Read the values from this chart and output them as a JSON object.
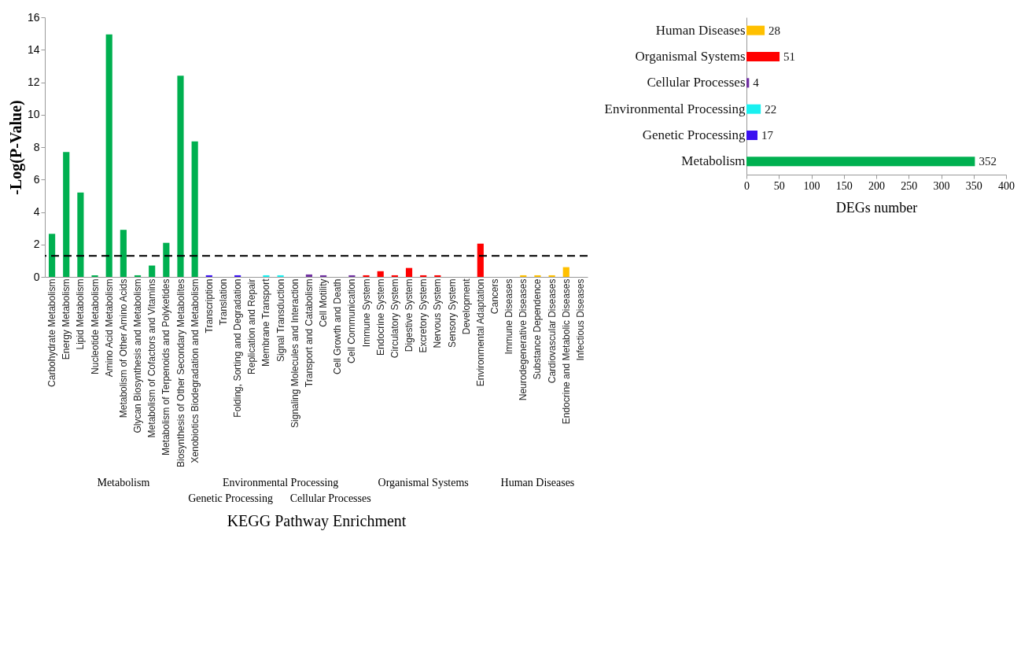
{
  "chart_data": [
    {
      "type": "bar",
      "ylabel": "-Log(P-Value)",
      "xlabel": "KEGG  Pathway Enrichment",
      "categories": [
        "Carbohydrate Metabolism",
        "Energy Metabolism",
        "Lipid Metabolism",
        "Nucleotide Metabolism",
        "Amino Acid Metabolism",
        "Metabolism of Other Amino Acids",
        "Glycan Biosynthesis and Metabolism",
        "Metabolism of Cofactors and Vitamins",
        "Metabolism of Terpenoids and Polyketides",
        "Biosynthesis of Other Secondary Metabolites",
        "Xenobiotics Biodegradation and Metabolism",
        "Transcription",
        "Translation",
        "Folding, Sorting and Degradation",
        "Replication and Repair",
        "Membrane Transport",
        "Signal Transduction",
        "Signaling Molecules and Interaction",
        "Transport and Catabolism",
        "Cell Motility",
        "Cell Growth and Death",
        "Cell Communication",
        "Immune System",
        "Endocrine System",
        "Circulatory System",
        "Digestive System",
        "Excretory System",
        "Nervous System",
        "Sensory System",
        "Development",
        "Environmental Adaptation",
        "Cancers",
        "Immune Diseases",
        "Neurodegenerative Diseases",
        "Substance Dependence",
        "Cardiovascular Diseases",
        "Endocrine and Metabolic Diseases",
        "Infectious Diseases"
      ],
      "values": [
        2.65,
        7.7,
        5.2,
        0.1,
        14.95,
        2.9,
        0.1,
        0.7,
        2.1,
        12.4,
        8.35,
        0.1,
        0,
        0.1,
        0,
        0.1,
        0.1,
        0,
        0.15,
        0.1,
        0,
        0.1,
        0.1,
        0.35,
        0.1,
        0.55,
        0.1,
        0.1,
        0,
        0,
        2.05,
        0,
        0,
        0.1,
        0.1,
        0.1,
        0.6,
        0
      ],
      "colors": [
        "#00b050",
        "#00b050",
        "#00b050",
        "#00b050",
        "#00b050",
        "#00b050",
        "#00b050",
        "#00b050",
        "#00b050",
        "#00b050",
        "#00b050",
        "#3a10f0",
        "#3a10f0",
        "#3a10f0",
        "#3a10f0",
        "#19f0f0",
        "#19f0f0",
        "#19f0f0",
        "#7030a0",
        "#7030a0",
        "#7030a0",
        "#7030a0",
        "#ff0000",
        "#ff0000",
        "#ff0000",
        "#ff0000",
        "#ff0000",
        "#ff0000",
        "#ff0000",
        "#ff0000",
        "#ff0000",
        "#ffc000",
        "#ffc000",
        "#ffc000",
        "#ffc000",
        "#ffc000",
        "#ffc000",
        "#ffc000"
      ],
      "ylim": [
        0,
        16
      ],
      "yticks": [
        0,
        2,
        4,
        6,
        8,
        10,
        12,
        14,
        16
      ],
      "grid": false,
      "ref_lines": [
        {
          "axis": "y",
          "value": 1.3,
          "color": "#000000",
          "line_style": "dashed"
        }
      ],
      "annotations": [
        "Metabolism",
        "Genetic Processing",
        "Environmental Processing",
        "Cellular Processes",
        "Organismal Systems",
        "Human Diseases"
      ]
    },
    {
      "type": "bar",
      "orientation": "horizontal",
      "xlabel": "DEGs number",
      "categories": [
        "Human Diseases",
        "Organismal Systems",
        "Cellular Processes",
        "Environmental Processing",
        "Genetic Processing",
        "Metabolism"
      ],
      "values": [
        28,
        51,
        4,
        22,
        17,
        352
      ],
      "colors": [
        "#ffc000",
        "#ff0000",
        "#7030a0",
        "#19f0f0",
        "#3a10f0",
        "#00b050"
      ],
      "xlim": [
        0,
        400
      ],
      "xticks": [
        0,
        50,
        100,
        150,
        200,
        250,
        300,
        350,
        400
      ],
      "data_labels": true,
      "grid": false
    }
  ]
}
